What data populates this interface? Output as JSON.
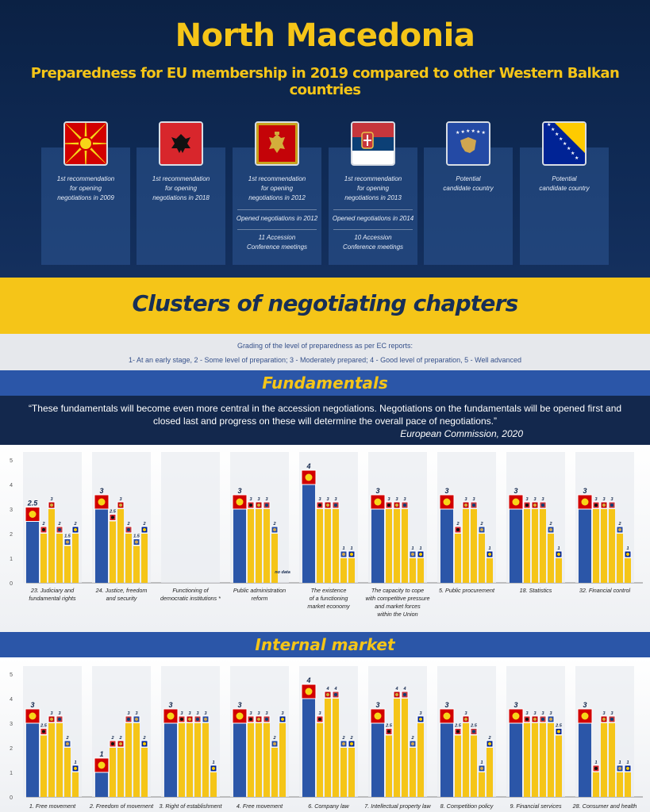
{
  "header": {
    "title": "North Macedonia",
    "subtitle": "Preparedness for EU membership in 2019 compared to other Western Balkan countries"
  },
  "countries": [
    {
      "flag": "north-macedonia-flag",
      "lines": [
        "1st recommendation",
        "for opening",
        "negotiations in 2009"
      ],
      "extra": []
    },
    {
      "flag": "albania-flag",
      "lines": [
        "1st recommendation",
        "for opening",
        "negotiations in 2018"
      ],
      "extra": []
    },
    {
      "flag": "montenegro-flag",
      "lines": [
        "1st recommendation",
        "for opening",
        "negotiations in 2012"
      ],
      "extra": [
        "Opened negotiations in 2012",
        "11 Accession",
        "Conference meetings"
      ]
    },
    {
      "flag": "serbia-flag",
      "lines": [
        "1st recommendation",
        "for opening",
        "negotiations in 2013"
      ],
      "extra": [
        "Opened negotiations in 2014",
        "10 Accession",
        "Conference meetings"
      ]
    },
    {
      "flag": "kosovo-flag",
      "lines": [
        "Potential",
        "candidate country"
      ],
      "extra": []
    },
    {
      "flag": "bosnia-flag",
      "lines": [
        "Potential",
        "candidate country"
      ],
      "extra": []
    }
  ],
  "clusters_title": "Clusters of negotiating chapters",
  "grading": {
    "title": "Grading of the level of preparedness as per EC reports:",
    "scale": "1- At an early stage,  2 - Some level of preparation;  3 - Moderately prepared;  4 - Good level of preparation,  5 - Well advanced"
  },
  "fundamentals": {
    "title": "Fundamentals",
    "quote": "“These fundamentals will become even more central in the accession negotiations. Negotiations on the fundamentals will be opened first and closed last and progress on these will determine the overall pace of negotiations.”",
    "source": "European Commission, 2020"
  },
  "internal_market": {
    "title": "Internal market"
  },
  "colors": {
    "north_macedonia": "#2b56a8",
    "others": "#f5c518",
    "navy": "#13284d",
    "yellow": "#f5c518"
  },
  "chart_data": [
    {
      "type": "bar",
      "title": "Fundamentals",
      "ylim": [
        0,
        5
      ],
      "yticks": [
        "0",
        "1",
        "2",
        "3",
        "4",
        "5"
      ],
      "series": [
        "north-macedonia",
        "albania",
        "montenegro",
        "serbia",
        "kosovo",
        "bosnia"
      ],
      "categories": [
        {
          "label": [
            "23. Judiciary and",
            "fundamental rights"
          ],
          "values": [
            2.5,
            2,
            3,
            2,
            1.5,
            2
          ],
          "labels": [
            "2.5",
            "2",
            "3",
            "2",
            "1.5",
            "2"
          ]
        },
        {
          "label": [
            "24. Justice, freedom",
            "and security"
          ],
          "values": [
            3,
            2.5,
            3,
            2,
            1.5,
            2
          ],
          "labels": [
            "3",
            "2.5",
            "3",
            "2",
            "1.5",
            "2"
          ]
        },
        {
          "label": [
            "Functioning of",
            "democratic institutions *"
          ],
          "values": [
            null,
            null,
            null,
            null,
            null,
            null
          ],
          "labels": [
            "",
            "",
            "",
            "",
            "",
            ""
          ]
        },
        {
          "label": [
            "Public administration",
            "reform"
          ],
          "values": [
            3,
            3,
            3,
            3,
            2,
            0
          ],
          "labels": [
            "3",
            "3",
            "3",
            "3",
            "2",
            "no data"
          ]
        },
        {
          "label": [
            "The existence",
            "of a functioning",
            "market economy"
          ],
          "values": [
            4,
            3,
            3,
            3,
            1,
            1
          ],
          "labels": [
            "4",
            "3",
            "3",
            "3",
            "1",
            "1"
          ]
        },
        {
          "label": [
            "The capacity to cope",
            "with competitive pressure",
            "and market forces",
            "within the Union"
          ],
          "values": [
            3,
            3,
            3,
            3,
            1,
            1
          ],
          "labels": [
            "3",
            "3",
            "3",
            "3",
            "1",
            "1"
          ]
        },
        {
          "label": [
            "5. Public procurement"
          ],
          "values": [
            3,
            2,
            3,
            3,
            2,
            1
          ],
          "labels": [
            "3",
            "2",
            "3",
            "3",
            "2",
            "1"
          ]
        },
        {
          "label": [
            "18. Statistics"
          ],
          "values": [
            3,
            3,
            3,
            3,
            2,
            1
          ],
          "labels": [
            "3",
            "3",
            "3",
            "3",
            "2",
            "1"
          ]
        },
        {
          "label": [
            "32. Financial control"
          ],
          "values": [
            3,
            3,
            3,
            3,
            2,
            1
          ],
          "labels": [
            "3",
            "3",
            "3",
            "3",
            "2",
            "1"
          ]
        }
      ]
    },
    {
      "type": "bar",
      "title": "Internal market",
      "ylim": [
        0,
        5
      ],
      "yticks": [
        "0",
        "1",
        "2",
        "3",
        "4",
        "5"
      ],
      "series": [
        "north-macedonia",
        "albania",
        "montenegro",
        "serbia",
        "kosovo",
        "bosnia"
      ],
      "categories": [
        {
          "label": [
            "1. Free movement"
          ],
          "values": [
            3,
            2.5,
            3,
            3,
            2,
            1
          ],
          "labels": [
            "3",
            "2.5",
            "3",
            "3",
            "2",
            "1"
          ]
        },
        {
          "label": [
            "2. Freedom of movement"
          ],
          "values": [
            1,
            2,
            2,
            3,
            3,
            2
          ],
          "labels": [
            "1",
            "2",
            "2",
            "3",
            "3",
            "2"
          ]
        },
        {
          "label": [
            "3. Right of establishment"
          ],
          "values": [
            3,
            3,
            3,
            3,
            3,
            1
          ],
          "labels": [
            "3",
            "3",
            "3",
            "3",
            "3",
            "1"
          ]
        },
        {
          "label": [
            "4. Free movement"
          ],
          "values": [
            3,
            3,
            3,
            3,
            2,
            3
          ],
          "labels": [
            "3",
            "3",
            "3",
            "3",
            "2",
            "3"
          ]
        },
        {
          "label": [
            "6. Company law"
          ],
          "values": [
            4,
            3,
            4,
            4,
            2,
            2
          ],
          "labels": [
            "4",
            "3",
            "4",
            "4",
            "2",
            "2"
          ]
        },
        {
          "label": [
            "7. Intellectual property law"
          ],
          "values": [
            3,
            2.5,
            4,
            4,
            2,
            3
          ],
          "labels": [
            "3",
            "2.5",
            "4",
            "4",
            "2",
            "3"
          ]
        },
        {
          "label": [
            "8. Competition policy"
          ],
          "values": [
            3,
            2.5,
            3,
            2.5,
            1,
            2
          ],
          "labels": [
            "3",
            "2.5",
            "3",
            "2.5",
            "1",
            "2"
          ]
        },
        {
          "label": [
            "9. Financial services"
          ],
          "values": [
            3,
            3,
            3,
            3,
            3,
            2.5
          ],
          "labels": [
            "3",
            "3",
            "3",
            "3",
            "3",
            "2.5"
          ]
        },
        {
          "label": [
            "28. Consumer and health"
          ],
          "values": [
            3,
            1,
            3,
            3,
            1,
            1
          ],
          "labels": [
            "3",
            "1",
            "3",
            "3",
            "1",
            "1"
          ]
        }
      ]
    }
  ]
}
